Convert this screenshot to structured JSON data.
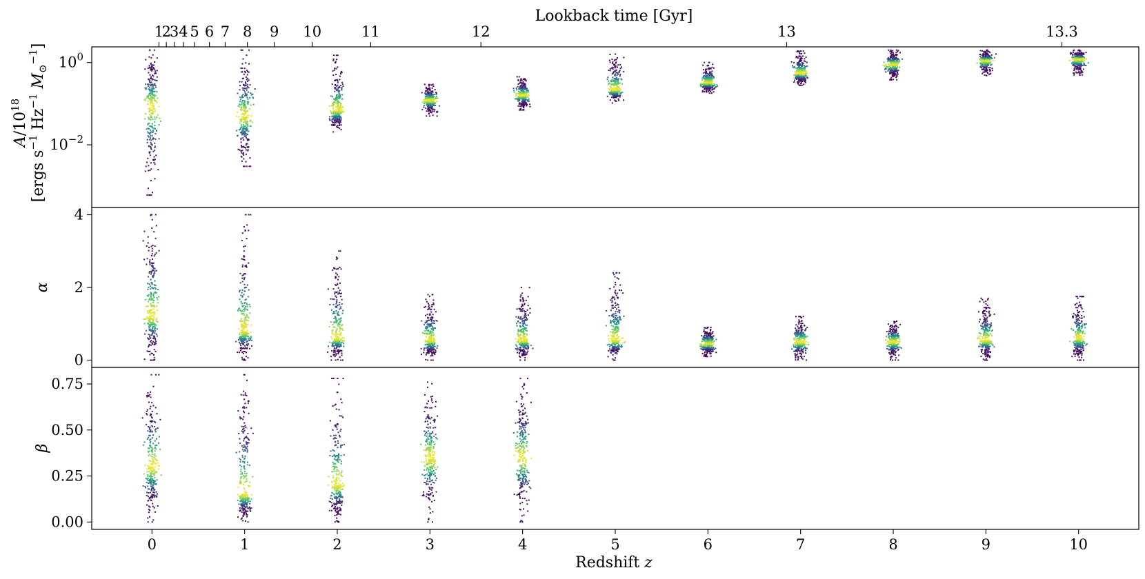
{
  "chart_data": {
    "type": "scatter",
    "colormap": [
      "#440154",
      "#3b528b",
      "#21918c",
      "#5ec962",
      "#fde725"
    ],
    "x_label": "Redshift z",
    "x_ticks": [
      0,
      1,
      2,
      3,
      4,
      5,
      6,
      7,
      8,
      9,
      10
    ],
    "x_lim": [
      -0.65,
      10.65
    ],
    "top_axis": {
      "label": "Lookback time [Gyr]",
      "ticks": [
        {
          "label": "1",
          "z": 0.075
        },
        {
          "label": "2",
          "z": 0.155
        },
        {
          "label": "3",
          "z": 0.24
        },
        {
          "label": "4",
          "z": 0.34
        },
        {
          "label": "5",
          "z": 0.46
        },
        {
          "label": "6",
          "z": 0.62
        },
        {
          "label": "7",
          "z": 0.79
        },
        {
          "label": "8",
          "z": 1.03
        },
        {
          "label": "9",
          "z": 1.32
        },
        {
          "label": "10",
          "z": 1.73
        },
        {
          "label": "11",
          "z": 2.36
        },
        {
          "label": "12",
          "z": 3.55
        },
        {
          "label": "13",
          "z": 6.85
        },
        {
          "label": "13.3",
          "z": 9.82
        }
      ]
    },
    "panels": [
      {
        "name": "A",
        "y_label": "A/10^18 [ergs s^-1 Hz^-1 M_sun^-1]",
        "y_scale": "log",
        "y_lim": [
          0.0003,
          2.4
        ],
        "y_ticks": [
          {
            "value": 0.01,
            "label": "10^-2"
          },
          {
            "value": 1,
            "label": "10^0"
          }
        ],
        "series": [
          {
            "z": 0,
            "center": 0.09,
            "lo": 0.0006,
            "hi": 2.0
          },
          {
            "z": 1,
            "center": 0.05,
            "lo": 0.003,
            "hi": 2.0
          },
          {
            "z": 2,
            "center": 0.07,
            "lo": 0.02,
            "hi": 1.5
          },
          {
            "z": 3,
            "center": 0.12,
            "lo": 0.05,
            "hi": 0.3
          },
          {
            "z": 4,
            "center": 0.16,
            "lo": 0.07,
            "hi": 0.45
          },
          {
            "z": 5,
            "center": 0.22,
            "lo": 0.1,
            "hi": 1.8
          },
          {
            "z": 6,
            "center": 0.32,
            "lo": 0.18,
            "hi": 1.0
          },
          {
            "z": 7,
            "center": 0.55,
            "lo": 0.28,
            "hi": 1.9
          },
          {
            "z": 8,
            "center": 0.9,
            "lo": 0.38,
            "hi": 2.0
          },
          {
            "z": 9,
            "center": 1.1,
            "lo": 0.48,
            "hi": 2.0
          },
          {
            "z": 10,
            "center": 1.2,
            "lo": 0.5,
            "hi": 2.0
          }
        ]
      },
      {
        "name": "alpha",
        "y_label": "α",
        "y_scale": "linear",
        "y_lim": [
          -0.2,
          4.2
        ],
        "y_ticks": [
          {
            "value": 0,
            "label": "0"
          },
          {
            "value": 2,
            "label": "2"
          },
          {
            "value": 4,
            "label": "4"
          }
        ],
        "series": [
          {
            "z": 0,
            "center": 1.2,
            "lo": 0.0,
            "hi": 4.0
          },
          {
            "z": 1,
            "center": 0.8,
            "lo": 0.0,
            "hi": 4.0
          },
          {
            "z": 2,
            "center": 0.6,
            "lo": 0.0,
            "hi": 3.0
          },
          {
            "z": 3,
            "center": 0.55,
            "lo": 0.0,
            "hi": 1.8
          },
          {
            "z": 4,
            "center": 0.55,
            "lo": 0.0,
            "hi": 2.0
          },
          {
            "z": 5,
            "center": 0.55,
            "lo": 0.0,
            "hi": 2.4
          },
          {
            "z": 6,
            "center": 0.45,
            "lo": 0.1,
            "hi": 0.9
          },
          {
            "z": 7,
            "center": 0.5,
            "lo": 0.0,
            "hi": 1.2
          },
          {
            "z": 8,
            "center": 0.5,
            "lo": 0.0,
            "hi": 1.1
          },
          {
            "z": 9,
            "center": 0.55,
            "lo": 0.0,
            "hi": 1.7
          },
          {
            "z": 10,
            "center": 0.6,
            "lo": 0.0,
            "hi": 1.75
          }
        ]
      },
      {
        "name": "beta",
        "y_label": "β",
        "y_scale": "linear",
        "y_lim": [
          -0.04,
          0.84
        ],
        "y_ticks": [
          {
            "value": 0,
            "label": "0.00"
          },
          {
            "value": 0.25,
            "label": "0.25"
          },
          {
            "value": 0.5,
            "label": "0.50"
          },
          {
            "value": 0.75,
            "label": "0.75"
          }
        ],
        "series": [
          {
            "z": 0,
            "center": 0.3,
            "lo": 0.0,
            "hi": 0.8
          },
          {
            "z": 1,
            "center": 0.15,
            "lo": 0.0,
            "hi": 0.8
          },
          {
            "z": 2,
            "center": 0.2,
            "lo": 0.0,
            "hi": 0.78
          },
          {
            "z": 3,
            "center": 0.35,
            "lo": 0.0,
            "hi": 0.76
          },
          {
            "z": 4,
            "center": 0.35,
            "lo": 0.0,
            "hi": 0.78
          }
        ]
      }
    ]
  }
}
